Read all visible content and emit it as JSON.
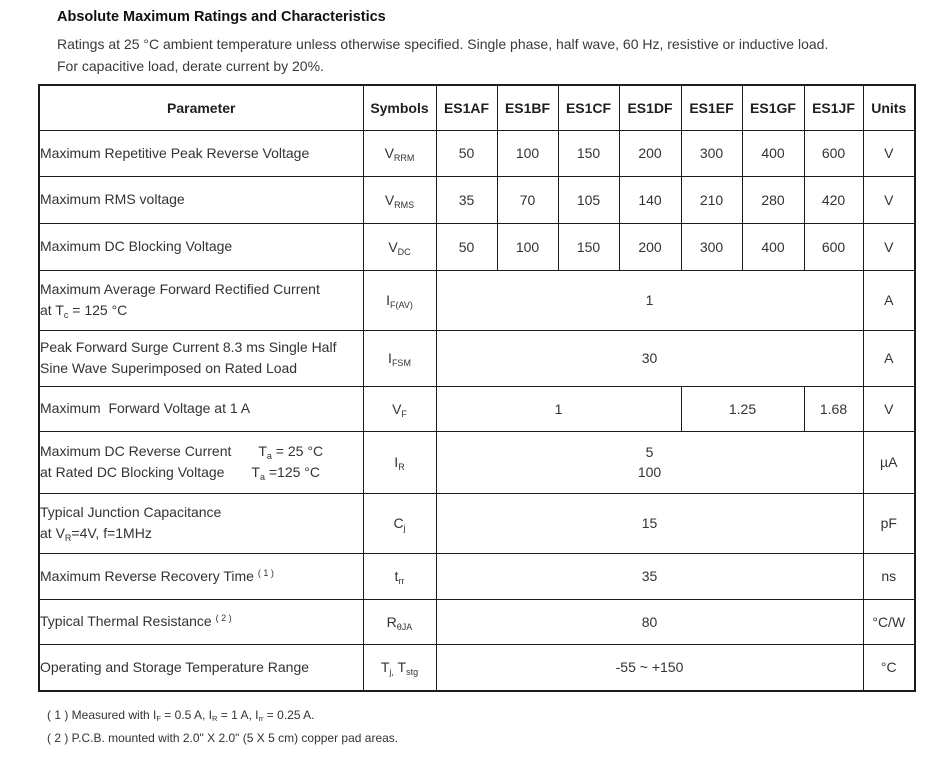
{
  "title": "Absolute Maximum Ratings and Characteristics",
  "subtitle_line1": "Ratings at 25 °C ambient temperature unless otherwise specified. Single phase, half wave, 60 Hz, resistive or inductive load.",
  "subtitle_line2": "For capacitive load, derate current by 20%.",
  "table": {
    "headers": [
      "Parameter",
      "Symbols",
      "ES1AF",
      "ES1BF",
      "ES1CF",
      "ES1DF",
      "ES1EF",
      "ES1GF",
      "ES1JF",
      "Units"
    ],
    "rows": [
      {
        "param_lines": [
          [
            {
              "t": "Maximum Repetitive Peak Reverse Voltage"
            }
          ]
        ],
        "symbol": [
          {
            "t": "V"
          },
          {
            "sub": "RRM"
          }
        ],
        "cells": [
          {
            "text": "50",
            "span": 1
          },
          {
            "text": "100",
            "span": 1
          },
          {
            "text": "150",
            "span": 1
          },
          {
            "text": "200",
            "span": 1
          },
          {
            "text": "300",
            "span": 1
          },
          {
            "text": "400",
            "span": 1
          },
          {
            "text": "600",
            "span": 1
          }
        ],
        "unit": "V"
      },
      {
        "param_lines": [
          [
            {
              "t": "Maximum RMS voltage"
            }
          ]
        ],
        "symbol": [
          {
            "t": "V"
          },
          {
            "sub": "RMS"
          }
        ],
        "cells": [
          {
            "text": "35",
            "span": 1
          },
          {
            "text": "70",
            "span": 1
          },
          {
            "text": "105",
            "span": 1
          },
          {
            "text": "140",
            "span": 1
          },
          {
            "text": "210",
            "span": 1
          },
          {
            "text": "280",
            "span": 1
          },
          {
            "text": "420",
            "span": 1
          }
        ],
        "unit": "V"
      },
      {
        "param_lines": [
          [
            {
              "t": "Maximum DC Blocking Voltage"
            }
          ]
        ],
        "symbol": [
          {
            "t": "V"
          },
          {
            "sub": "DC"
          }
        ],
        "cells": [
          {
            "text": "50",
            "span": 1
          },
          {
            "text": "100",
            "span": 1
          },
          {
            "text": "150",
            "span": 1
          },
          {
            "text": "200",
            "span": 1
          },
          {
            "text": "300",
            "span": 1
          },
          {
            "text": "400",
            "span": 1
          },
          {
            "text": "600",
            "span": 1
          }
        ],
        "unit": "V"
      },
      {
        "param_lines": [
          [
            {
              "t": "Maximum Average Forward Rectified Current"
            }
          ],
          [
            {
              "t": "at T"
            },
            {
              "sub": "c"
            },
            {
              "t": " = 125 °C"
            }
          ]
        ],
        "symbol": [
          {
            "t": "I"
          },
          {
            "sub": "F(AV)"
          }
        ],
        "cells": [
          {
            "text": "1",
            "span": 7
          }
        ],
        "unit": "A"
      },
      {
        "param_lines": [
          [
            {
              "t": "Peak Forward Surge Current 8.3 ms Single Half"
            }
          ],
          [
            {
              "t": "Sine Wave Superimposed on Rated Load"
            }
          ]
        ],
        "symbol": [
          {
            "t": "I"
          },
          {
            "sub": "FSM"
          }
        ],
        "cells": [
          {
            "text": "30",
            "span": 7
          }
        ],
        "unit": "A"
      },
      {
        "param_lines": [
          [
            {
              "t": "Maximum  Forward Voltage at 1 A"
            }
          ]
        ],
        "symbol": [
          {
            "t": "V"
          },
          {
            "sub": "F"
          }
        ],
        "cells": [
          {
            "text": "1",
            "span": 4
          },
          {
            "text": "1.25",
            "span": 2
          },
          {
            "text": "1.68",
            "span": 1
          }
        ],
        "unit": "V"
      },
      {
        "param_lines": [
          [
            {
              "t": "Maximum DC Reverse Current       T"
            },
            {
              "sub": "a"
            },
            {
              "t": " = 25 °C"
            }
          ],
          [
            {
              "t": "at Rated DC Blocking Voltage       T"
            },
            {
              "sub": "a"
            },
            {
              "t": " =125 °C"
            }
          ]
        ],
        "symbol": [
          {
            "t": "I"
          },
          {
            "sub": "R"
          }
        ],
        "cells": [
          {
            "lines": [
              "5",
              "100"
            ],
            "span": 7
          }
        ],
        "unit": "µA"
      },
      {
        "param_lines": [
          [
            {
              "t": "Typical Junction Capacitance"
            }
          ],
          [
            {
              "t": "at V"
            },
            {
              "sub": "R"
            },
            {
              "t": "=4V, f=1MHz"
            }
          ]
        ],
        "symbol": [
          {
            "t": "C"
          },
          {
            "sub": "j"
          }
        ],
        "cells": [
          {
            "text": "15",
            "span": 7
          }
        ],
        "unit": "pF"
      },
      {
        "param_lines": [
          [
            {
              "t": "Maximum Reverse Recovery Time "
            },
            {
              "sup": "( 1 )"
            }
          ]
        ],
        "symbol": [
          {
            "t": "t"
          },
          {
            "sub": "rr"
          }
        ],
        "cells": [
          {
            "text": "35",
            "span": 7
          }
        ],
        "unit": "ns"
      },
      {
        "param_lines": [
          [
            {
              "t": "Typical Thermal Resistance "
            },
            {
              "sup": "( 2 )"
            }
          ]
        ],
        "symbol": [
          {
            "t": "R"
          },
          {
            "sub": "θJA"
          }
        ],
        "cells": [
          {
            "text": "80",
            "span": 7
          }
        ],
        "unit": "°C/W"
      },
      {
        "param_lines": [
          [
            {
              "t": "Operating and Storage Temperature Range"
            }
          ]
        ],
        "symbol": [
          {
            "t": "T"
          },
          {
            "sub": "j,"
          },
          {
            "t": " T"
          },
          {
            "sub": "stg"
          }
        ],
        "cells": [
          {
            "text": "-55 ~ +150",
            "span": 7
          }
        ],
        "unit": "°C"
      }
    ]
  },
  "footnotes": [
    [
      {
        "t": "( 1 ) Measured with I"
      },
      {
        "sub": "F"
      },
      {
        "t": " = 0.5 A, I"
      },
      {
        "sub": "R"
      },
      {
        "t": " = 1 A, I"
      },
      {
        "sub": "rr"
      },
      {
        "t": " = 0.25 A."
      }
    ],
    [
      {
        "t": "( 2 ) P.C.B. mounted with 2.0\" X 2.0\" (5 X 5 cm) copper pad areas."
      }
    ]
  ]
}
